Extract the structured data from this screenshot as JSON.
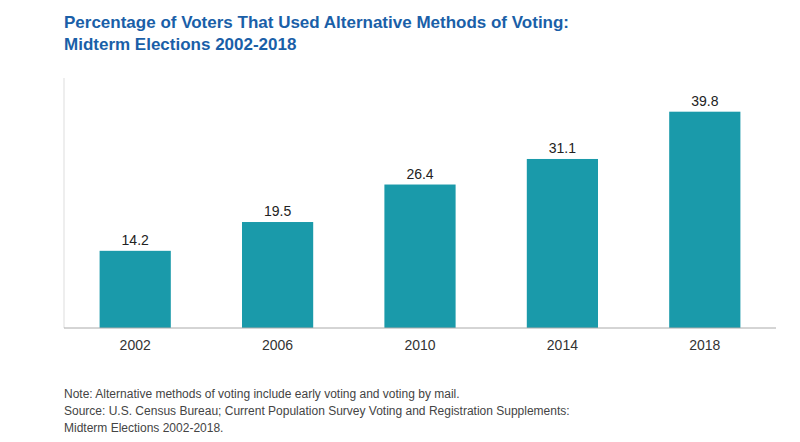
{
  "chart_data": {
    "type": "bar",
    "title": "Percentage of Voters That Used Alternative Methods of Voting:",
    "subtitle": "Midterm Elections 2002-2018",
    "categories": [
      "2002",
      "2006",
      "2010",
      "2014",
      "2018"
    ],
    "values": [
      14.2,
      19.5,
      26.4,
      31.1,
      39.8
    ],
    "color": "#1a9aaa",
    "ylim": [
      0,
      46
    ],
    "grid": false,
    "data_labels": true,
    "tick_labels": "x",
    "annotations": [
      "Note: Alternative methods of voting include early voting and voting by mail.\nSource: U.S. Census Bureau; Current Population Survey Voting and Registration Supplements:\nMidterm Elections 2002-2018."
    ]
  }
}
